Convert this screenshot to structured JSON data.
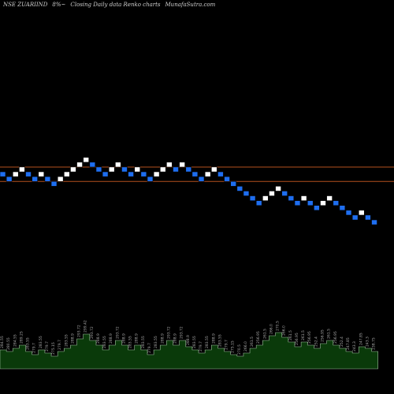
{
  "header": {
    "symbol": "NSE ZUARIIND",
    "change": "8%~",
    "description": "Closing Daily data  Renko  charts",
    "source": "MunafaSutra.com"
  },
  "colors": {
    "background": "#000000",
    "up_brick": "#ffffff",
    "down_brick": "#1e6ef0",
    "reference_line": "#b4501e",
    "volume_area": "#0a3a0a",
    "volume_outline": "#9fbf9f",
    "volume_label": "#a8a8a8"
  },
  "chart_data": {
    "type": "renko",
    "bricks": [
      {
        "i": 0,
        "level": 0,
        "dir": "down"
      },
      {
        "i": 1,
        "level": -1,
        "dir": "down"
      },
      {
        "i": 2,
        "level": 0,
        "dir": "up"
      },
      {
        "i": 3,
        "level": 1,
        "dir": "up"
      },
      {
        "i": 4,
        "level": 0,
        "dir": "down"
      },
      {
        "i": 5,
        "level": -1,
        "dir": "down"
      },
      {
        "i": 6,
        "level": 0,
        "dir": "up"
      },
      {
        "i": 7,
        "level": -1,
        "dir": "down"
      },
      {
        "i": 8,
        "level": -2,
        "dir": "down"
      },
      {
        "i": 9,
        "level": -1,
        "dir": "up"
      },
      {
        "i": 10,
        "level": 0,
        "dir": "up"
      },
      {
        "i": 11,
        "level": 1,
        "dir": "up"
      },
      {
        "i": 12,
        "level": 2,
        "dir": "up"
      },
      {
        "i": 13,
        "level": 3,
        "dir": "up"
      },
      {
        "i": 14,
        "level": 2,
        "dir": "down"
      },
      {
        "i": 15,
        "level": 1,
        "dir": "down"
      },
      {
        "i": 16,
        "level": 0,
        "dir": "down"
      },
      {
        "i": 17,
        "level": 1,
        "dir": "up"
      },
      {
        "i": 18,
        "level": 2,
        "dir": "up"
      },
      {
        "i": 19,
        "level": 1,
        "dir": "down"
      },
      {
        "i": 20,
        "level": 0,
        "dir": "down"
      },
      {
        "i": 21,
        "level": 1,
        "dir": "up"
      },
      {
        "i": 22,
        "level": 0,
        "dir": "down"
      },
      {
        "i": 23,
        "level": -1,
        "dir": "down"
      },
      {
        "i": 24,
        "level": 0,
        "dir": "up"
      },
      {
        "i": 25,
        "level": 1,
        "dir": "up"
      },
      {
        "i": 26,
        "level": 2,
        "dir": "up"
      },
      {
        "i": 27,
        "level": 1,
        "dir": "down"
      },
      {
        "i": 28,
        "level": 2,
        "dir": "up"
      },
      {
        "i": 29,
        "level": 1,
        "dir": "down"
      },
      {
        "i": 30,
        "level": 0,
        "dir": "down"
      },
      {
        "i": 31,
        "level": -1,
        "dir": "down"
      },
      {
        "i": 32,
        "level": 0,
        "dir": "up"
      },
      {
        "i": 33,
        "level": 1,
        "dir": "up"
      },
      {
        "i": 34,
        "level": 0,
        "dir": "down"
      },
      {
        "i": 35,
        "level": -1,
        "dir": "down"
      },
      {
        "i": 36,
        "level": -2,
        "dir": "down"
      },
      {
        "i": 37,
        "level": -3,
        "dir": "down"
      },
      {
        "i": 38,
        "level": -4,
        "dir": "down"
      },
      {
        "i": 39,
        "level": -5,
        "dir": "down"
      },
      {
        "i": 40,
        "level": -6,
        "dir": "down"
      },
      {
        "i": 41,
        "level": -5,
        "dir": "up"
      },
      {
        "i": 42,
        "level": -4,
        "dir": "up"
      },
      {
        "i": 43,
        "level": -3,
        "dir": "up"
      },
      {
        "i": 44,
        "level": -4,
        "dir": "down"
      },
      {
        "i": 45,
        "level": -5,
        "dir": "down"
      },
      {
        "i": 46,
        "level": -6,
        "dir": "down"
      },
      {
        "i": 47,
        "level": -5,
        "dir": "up"
      },
      {
        "i": 48,
        "level": -6,
        "dir": "down"
      },
      {
        "i": 49,
        "level": -7,
        "dir": "down"
      },
      {
        "i": 50,
        "level": -6,
        "dir": "up"
      },
      {
        "i": 51,
        "level": -5,
        "dir": "up"
      },
      {
        "i": 52,
        "level": -6,
        "dir": "down"
      },
      {
        "i": 53,
        "level": -7,
        "dir": "down"
      },
      {
        "i": 54,
        "level": -8,
        "dir": "down"
      },
      {
        "i": 55,
        "level": -9,
        "dir": "down"
      },
      {
        "i": 56,
        "level": -8,
        "dir": "up"
      },
      {
        "i": 57,
        "level": -9,
        "dir": "down"
      },
      {
        "i": 58,
        "level": -10,
        "dir": "down"
      }
    ],
    "reference_levels": [
      1.5,
      -1.5
    ],
    "volume": [
      {
        "i": 0,
        "v": 24,
        "label": "284.55"
      },
      {
        "i": 1,
        "v": 22,
        "label": "280.55"
      },
      {
        "i": 2,
        "v": 26,
        "label": "284.55"
      },
      {
        "i": 3,
        "v": 30,
        "label": "289.25"
      },
      {
        "i": 4,
        "v": 22,
        "label": "283.55"
      },
      {
        "i": 5,
        "v": 18,
        "label": "279.7"
      },
      {
        "i": 6,
        "v": 24,
        "label": "283.55"
      },
      {
        "i": 7,
        "v": 20,
        "label": "279.7"
      },
      {
        "i": 8,
        "v": 16,
        "label": "275.15"
      },
      {
        "i": 9,
        "v": 22,
        "label": "279.7"
      },
      {
        "i": 10,
        "v": 26,
        "label": "283.55"
      },
      {
        "i": 11,
        "v": 30,
        "label": "288.9"
      },
      {
        "i": 12,
        "v": 38,
        "label": "293.72"
      },
      {
        "i": 13,
        "v": 44,
        "label": "299.42"
      },
      {
        "i": 14,
        "v": 36,
        "label": "293.72"
      },
      {
        "i": 15,
        "v": 30,
        "label": "288.9"
      },
      {
        "i": 16,
        "v": 24,
        "label": "283.55"
      },
      {
        "i": 17,
        "v": 30,
        "label": "288.9"
      },
      {
        "i": 18,
        "v": 36,
        "label": "293.72"
      },
      {
        "i": 19,
        "v": 30,
        "label": "288.9"
      },
      {
        "i": 20,
        "v": 24,
        "label": "283.55"
      },
      {
        "i": 21,
        "v": 30,
        "label": "288.9"
      },
      {
        "i": 22,
        "v": 24,
        "label": "283.55"
      },
      {
        "i": 23,
        "v": 18,
        "label": "279.7"
      },
      {
        "i": 24,
        "v": 24,
        "label": "283.55"
      },
      {
        "i": 25,
        "v": 30,
        "label": "288.9"
      },
      {
        "i": 26,
        "v": 36,
        "label": "293.72"
      },
      {
        "i": 27,
        "v": 30,
        "label": "288.9"
      },
      {
        "i": 28,
        "v": 36,
        "label": "293.72"
      },
      {
        "i": 29,
        "v": 28,
        "label": "288.9"
      },
      {
        "i": 30,
        "v": 24,
        "label": "283.55"
      },
      {
        "i": 31,
        "v": 20,
        "label": "279.7"
      },
      {
        "i": 32,
        "v": 24,
        "label": "283.55"
      },
      {
        "i": 33,
        "v": 30,
        "label": "288.9"
      },
      {
        "i": 34,
        "v": 26,
        "label": "283.55"
      },
      {
        "i": 35,
        "v": 22,
        "label": "279.7"
      },
      {
        "i": 36,
        "v": 18,
        "label": "275.15"
      },
      {
        "i": 37,
        "v": 16,
        "label": "270.5"
      },
      {
        "i": 38,
        "v": 20,
        "label": "266.0"
      },
      {
        "i": 39,
        "v": 26,
        "label": "261.5"
      },
      {
        "i": 40,
        "v": 30,
        "label": "256.95"
      },
      {
        "i": 41,
        "v": 36,
        "label": "261.5"
      },
      {
        "i": 42,
        "v": 42,
        "label": "266.0"
      },
      {
        "i": 43,
        "v": 46,
        "label": "270.5"
      },
      {
        "i": 44,
        "v": 40,
        "label": "266.0"
      },
      {
        "i": 45,
        "v": 34,
        "label": "261.5"
      },
      {
        "i": 46,
        "v": 28,
        "label": "256.95"
      },
      {
        "i": 47,
        "v": 34,
        "label": "261.5"
      },
      {
        "i": 48,
        "v": 30,
        "label": "256.95"
      },
      {
        "i": 49,
        "v": 26,
        "label": "252.4"
      },
      {
        "i": 50,
        "v": 32,
        "label": "256.95"
      },
      {
        "i": 51,
        "v": 36,
        "label": "261.5"
      },
      {
        "i": 52,
        "v": 30,
        "label": "256.95"
      },
      {
        "i": 53,
        "v": 26,
        "label": "252.4"
      },
      {
        "i": 54,
        "v": 22,
        "label": "247.85"
      },
      {
        "i": 55,
        "v": 20,
        "label": "243.3"
      },
      {
        "i": 56,
        "v": 28,
        "label": "247.85"
      },
      {
        "i": 57,
        "v": 26,
        "label": "243.3"
      },
      {
        "i": 58,
        "v": 22,
        "label": "238.75"
      }
    ],
    "title": "",
    "xlabel": "",
    "ylabel": ""
  }
}
